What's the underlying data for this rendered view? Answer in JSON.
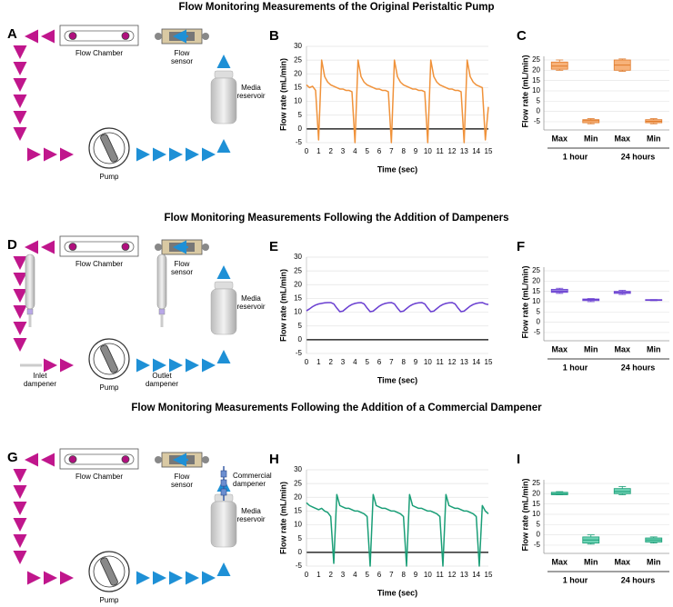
{
  "figure": {
    "rows": [
      {
        "title": "Flow Monitoring Measurements of the Original Peristaltic Pump",
        "letters": [
          "A",
          "B",
          "C"
        ],
        "diagram": {
          "flow_chamber": "Flow Chamber",
          "flow_sensor": [
            "Flow",
            "sensor"
          ],
          "reservoir": [
            "Media",
            "reservoir"
          ],
          "pump": "Pump"
        }
      },
      {
        "title": "Flow Monitoring Measurements Following the Addition of Dampeners",
        "letters": [
          "D",
          "E",
          "F"
        ],
        "diagram": {
          "flow_chamber": "Flow Chamber",
          "flow_sensor": [
            "Flow",
            "sensor"
          ],
          "reservoir": [
            "Media",
            "reservoir"
          ],
          "pump": "Pump",
          "inlet": [
            "Inlet",
            "dampener"
          ],
          "outlet": [
            "Outlet",
            "dampener"
          ]
        }
      },
      {
        "title": "Flow Monitoring Measurements Following the Addition of a Commercial Dampener",
        "letters": [
          "G",
          "H",
          "I"
        ],
        "diagram": {
          "flow_chamber": "Flow Chamber",
          "flow_sensor": [
            "Flow",
            "sensor"
          ],
          "reservoir": [
            "Media",
            "reservoir"
          ],
          "pump": "Pump",
          "commercial": [
            "Commercial",
            "dampener"
          ]
        }
      }
    ]
  },
  "chart_data": [
    {
      "type": "line",
      "xlabel": "Time (sec)",
      "ylabel": "Flow rate (mL/min)",
      "color": "#f0923a",
      "zero_line": true,
      "grid": true,
      "x": [
        0,
        0.25,
        0.5,
        0.75,
        1,
        1.25,
        1.5,
        1.75,
        2,
        2.25,
        2.5,
        2.75,
        3,
        3.25,
        3.5,
        3.75,
        4,
        4.25,
        4.5,
        4.75,
        5,
        5.25,
        5.5,
        5.75,
        6,
        6.25,
        6.5,
        6.75,
        7,
        7.25,
        7.5,
        7.75,
        8,
        8.25,
        8.5,
        8.75,
        9,
        9.25,
        9.5,
        9.75,
        10,
        10.25,
        10.5,
        10.75,
        11,
        11.25,
        11.5,
        11.75,
        12,
        12.25,
        12.5,
        12.75,
        13,
        13.25,
        13.5,
        13.75,
        14,
        14.25,
        14.5,
        14.75,
        15
      ],
      "values": [
        16,
        15,
        15.5,
        14,
        -4,
        25,
        19,
        17,
        16,
        15.5,
        15,
        14.5,
        14.5,
        14,
        14,
        13.5,
        -5,
        25,
        19,
        17,
        16,
        15.5,
        15,
        14.5,
        14.5,
        14,
        14,
        13.5,
        -5,
        25,
        19,
        17,
        16,
        15.5,
        15,
        14.5,
        14.5,
        14,
        14,
        13.5,
        -5,
        25,
        19,
        17,
        16,
        15.5,
        15,
        14.5,
        14.5,
        14,
        14,
        13.5,
        -5,
        25,
        19,
        17,
        16,
        15.5,
        15,
        -4,
        8
      ],
      "xlim": [
        0,
        15
      ],
      "xticks": [
        0,
        1,
        2,
        3,
        4,
        5,
        6,
        7,
        8,
        9,
        10,
        11,
        12,
        13,
        14,
        15
      ],
      "ylim": [
        -5,
        30
      ],
      "yticks": [
        -5,
        0,
        5,
        10,
        15,
        20,
        25,
        30
      ]
    },
    {
      "type": "box",
      "ylabel": "Flow rate (mL/min)",
      "categories": [
        "Max",
        "Min",
        "Max",
        "Min"
      ],
      "groups": [
        "1 hour",
        "24 hours"
      ],
      "color": "#f7b27a",
      "edge_color": "#e07a2a",
      "grid": true,
      "boxes": [
        {
          "min": 20,
          "q1": 20.5,
          "median": 22,
          "q3": 24,
          "max": 25
        },
        {
          "min": -6,
          "q1": -5.5,
          "median": -4.5,
          "q3": -4,
          "max": -3.5
        },
        {
          "min": 19.5,
          "q1": 20,
          "median": 22.5,
          "q3": 25,
          "max": 25.5
        },
        {
          "min": -6,
          "q1": -5.5,
          "median": -4.8,
          "q3": -4,
          "max": -3.5
        }
      ],
      "ylim": [
        -9,
        25
      ],
      "yticks": [
        -5,
        0,
        5,
        10,
        15,
        20,
        25
      ]
    },
    {
      "type": "line",
      "xlabel": "Time (sec)",
      "ylabel": "Flow rate (mL/min)",
      "color": "#6a3fd1",
      "zero_line": true,
      "grid": true,
      "x": [
        0,
        0.25,
        0.5,
        0.75,
        1,
        1.25,
        1.5,
        1.75,
        2,
        2.25,
        2.5,
        2.75,
        3,
        3.25,
        3.5,
        3.75,
        4,
        4.25,
        4.5,
        4.75,
        5,
        5.25,
        5.5,
        5.75,
        6,
        6.25,
        6.5,
        6.75,
        7,
        7.25,
        7.5,
        7.75,
        8,
        8.25,
        8.5,
        8.75,
        9,
        9.25,
        9.5,
        9.75,
        10,
        10.25,
        10.5,
        10.75,
        11,
        11.25,
        11.5,
        11.75,
        12,
        12.25,
        12.5,
        12.75,
        13,
        13.25,
        13.5,
        13.75,
        14,
        14.25,
        14.5,
        14.75,
        15
      ],
      "values": [
        10.5,
        11.2,
        12,
        12.6,
        13,
        13.2,
        13.4,
        13.5,
        13.5,
        13,
        11.5,
        10.2,
        10.4,
        11.3,
        12.2,
        12.8,
        13.2,
        13.4,
        13.5,
        13,
        11.5,
        10.2,
        10.4,
        11.3,
        12.2,
        12.8,
        13.2,
        13.4,
        13.5,
        13,
        11.5,
        10.2,
        10.4,
        11.3,
        12.2,
        12.8,
        13.2,
        13.4,
        13.5,
        13,
        11.5,
        10.2,
        10.4,
        11.3,
        12.2,
        12.8,
        13.2,
        13.4,
        13.5,
        13,
        11.5,
        10.2,
        10.4,
        11.3,
        12.2,
        12.8,
        13.2,
        13.4,
        13.5,
        13,
        12.8
      ],
      "xlim": [
        0,
        15
      ],
      "xticks": [
        0,
        1,
        2,
        3,
        4,
        5,
        6,
        7,
        8,
        9,
        10,
        11,
        12,
        13,
        14,
        15
      ],
      "ylim": [
        -5,
        30
      ],
      "yticks": [
        -5,
        0,
        5,
        10,
        15,
        20,
        25,
        30
      ]
    },
    {
      "type": "box",
      "ylabel": "Flow rate (mL/min)",
      "categories": [
        "Max",
        "Min",
        "Max",
        "Min"
      ],
      "groups": [
        "1 hour",
        "24 hours"
      ],
      "color": "#9b85e0",
      "edge_color": "#6a3fd1",
      "grid": true,
      "boxes": [
        {
          "min": 14,
          "q1": 14.5,
          "median": 15,
          "q3": 16,
          "max": 16.5
        },
        {
          "min": 10,
          "q1": 10.5,
          "median": 11,
          "q3": 11.3,
          "max": 11.5
        },
        {
          "min": 13.5,
          "q1": 14,
          "median": 14.5,
          "q3": 15,
          "max": 15.5
        },
        {
          "min": 10.5,
          "q1": 10.7,
          "median": 10.8,
          "q3": 11,
          "max": 11
        }
      ],
      "ylim": [
        -9,
        25
      ],
      "yticks": [
        -5,
        0,
        5,
        10,
        15,
        20,
        25
      ]
    },
    {
      "type": "line",
      "xlabel": "Time (sec)",
      "ylabel": "Flow rate (mL/min)",
      "color": "#1a9e77",
      "zero_line": true,
      "grid": true,
      "x": [
        0,
        0.25,
        0.5,
        0.75,
        1,
        1.25,
        1.5,
        1.75,
        2,
        2.25,
        2.5,
        2.75,
        3,
        3.25,
        3.5,
        3.75,
        4,
        4.25,
        4.5,
        4.75,
        5,
        5.25,
        5.5,
        5.75,
        6,
        6.25,
        6.5,
        6.75,
        7,
        7.25,
        7.5,
        7.75,
        8,
        8.25,
        8.5,
        8.75,
        9,
        9.25,
        9.5,
        9.75,
        10,
        10.25,
        10.5,
        10.75,
        11,
        11.25,
        11.5,
        11.75,
        12,
        12.25,
        12.5,
        12.75,
        13,
        13.25,
        13.5,
        13.75,
        14,
        14.25,
        14.5,
        14.75,
        15
      ],
      "values": [
        18,
        17,
        16.5,
        16,
        15.5,
        16,
        15,
        14.5,
        13,
        -4,
        21,
        17,
        16.5,
        16,
        16,
        15.5,
        15,
        15,
        14.5,
        14,
        13,
        -5,
        21,
        17,
        16.5,
        16,
        16,
        15.5,
        15,
        15,
        14.5,
        14,
        13,
        -5,
        21,
        17,
        16.5,
        16,
        16,
        15.5,
        15,
        15,
        14.5,
        14,
        13,
        -5,
        21,
        17,
        16.5,
        16,
        16,
        15.5,
        15,
        15,
        14.5,
        14,
        13,
        -5,
        17,
        15,
        14
      ],
      "xlim": [
        0,
        15
      ],
      "xticks": [
        0,
        1,
        2,
        3,
        4,
        5,
        6,
        7,
        8,
        9,
        10,
        11,
        12,
        13,
        14,
        15
      ],
      "ylim": [
        -5,
        30
      ],
      "yticks": [
        -5,
        0,
        5,
        10,
        15,
        20,
        25,
        30
      ]
    },
    {
      "type": "box",
      "ylabel": "Flow rate (mL/min)",
      "categories": [
        "Max",
        "Min",
        "Max",
        "Min"
      ],
      "groups": [
        "1 hour",
        "24 hours"
      ],
      "color": "#6fd3b5",
      "edge_color": "#1a9e77",
      "grid": true,
      "boxes": [
        {
          "min": 19.5,
          "q1": 19.5,
          "median": 20,
          "q3": 20.7,
          "max": 21
        },
        {
          "min": -4.5,
          "q1": -4,
          "median": -2.5,
          "q3": -1,
          "max": 0
        },
        {
          "min": 19.5,
          "q1": 20,
          "median": 21,
          "q3": 22.5,
          "max": 23.5
        },
        {
          "min": -4,
          "q1": -3.5,
          "median": -2.5,
          "q3": -1.5,
          "max": -1
        }
      ],
      "ylim": [
        -9,
        25
      ],
      "yticks": [
        -5,
        0,
        5,
        10,
        15,
        20,
        25
      ]
    }
  ]
}
